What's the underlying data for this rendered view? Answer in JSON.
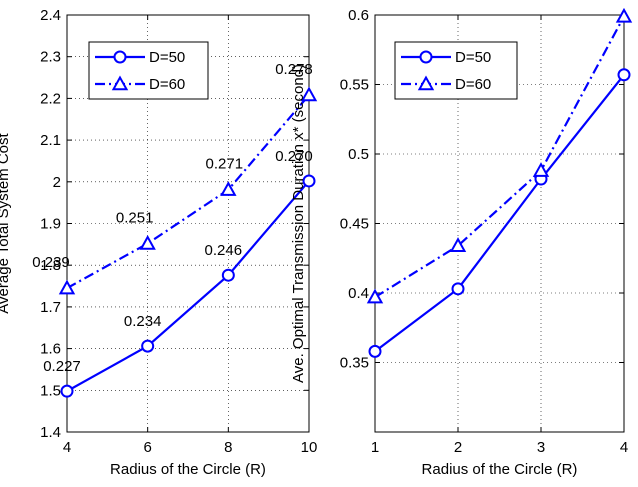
{
  "chart_data": [
    {
      "type": "line",
      "title": "",
      "xlabel": "Radius of the Circle (R)",
      "ylabel": "Average Total System Cost",
      "xlim": [
        4,
        10
      ],
      "ylim": [
        1.4,
        2.4
      ],
      "x": [
        4,
        6,
        8,
        10
      ],
      "xticks": [
        "4",
        "6",
        "8",
        "10"
      ],
      "yticks": [
        "1.4",
        "1.5",
        "1.6",
        "1.7",
        "1.8",
        "1.9",
        "2",
        "2.1",
        "2.2",
        "2.3",
        "2.4"
      ],
      "grid": "dotted",
      "legend_position": "top-left",
      "series": [
        {
          "name": "D=50",
          "values": [
            1.498,
            1.606,
            1.776,
            2.002
          ],
          "marker": "circle",
          "line": "solid",
          "color": "#0000ff",
          "labels": [
            "0.227",
            "0.234",
            "0.246",
            "0.270"
          ]
        },
        {
          "name": "D=60",
          "values": [
            1.745,
            1.852,
            1.981,
            2.208
          ],
          "marker": "triangle",
          "line": "dashdot",
          "color": "#0000ff",
          "labels": [
            "0.239",
            "0.251",
            "0.271",
            "0.278"
          ]
        }
      ]
    },
    {
      "type": "line",
      "title": "",
      "xlabel": "Radius of the Circle (R)",
      "ylabel": "Ave. Optimal Transmission Duration x* (second)",
      "xlim": [
        1,
        4
      ],
      "ylim": [
        0.3,
        0.6
      ],
      "x": [
        1,
        2,
        3,
        4
      ],
      "xticks": [
        "1",
        "2",
        "3",
        "4"
      ],
      "yticks": [
        "0.35",
        "0.4",
        "0.45",
        "0.5",
        "0.55",
        "0.6"
      ],
      "grid": "dotted",
      "legend_position": "top-left",
      "series": [
        {
          "name": "D=50",
          "values": [
            0.358,
            0.403,
            0.482,
            0.557
          ],
          "marker": "circle",
          "line": "solid",
          "color": "#0000ff"
        },
        {
          "name": "D=60",
          "values": [
            0.397,
            0.434,
            0.488,
            0.599
          ],
          "marker": "triangle",
          "line": "dashdot",
          "color": "#0000ff"
        }
      ]
    }
  ]
}
